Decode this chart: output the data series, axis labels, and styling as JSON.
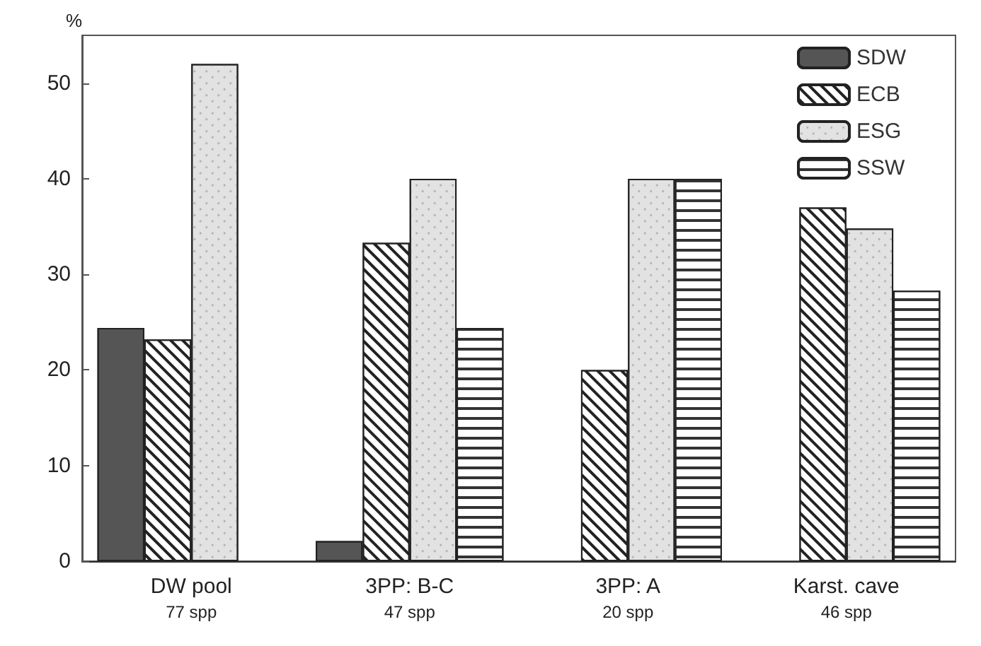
{
  "chart_data": {
    "type": "bar",
    "ylabel": "%",
    "categories": [
      "DW pool\n77 spp",
      "3PP: B-C\n47 spp",
      "3PP: A\n20 spp",
      "Karst. cave\n46 spp"
    ],
    "series": [
      {
        "name": "SDW",
        "color": "#555555",
        "values": [
          24.4,
          2.1,
          null,
          null
        ]
      },
      {
        "name": "ECB",
        "color": "#ffffff",
        "values": [
          23.2,
          33.3,
          20,
          37
        ]
      },
      {
        "name": "ESG",
        "color": "#e2e2e2",
        "values": [
          52,
          40,
          40,
          34.8
        ]
      },
      {
        "name": "SSW",
        "color": "#ffffff",
        "values": [
          null,
          24.4,
          40,
          28.3
        ]
      }
    ],
    "ylim": [
      0,
      55
    ],
    "yticks": [
      0,
      10,
      20,
      30,
      40,
      50
    ],
    "grid": false,
    "legend": "top right"
  }
}
